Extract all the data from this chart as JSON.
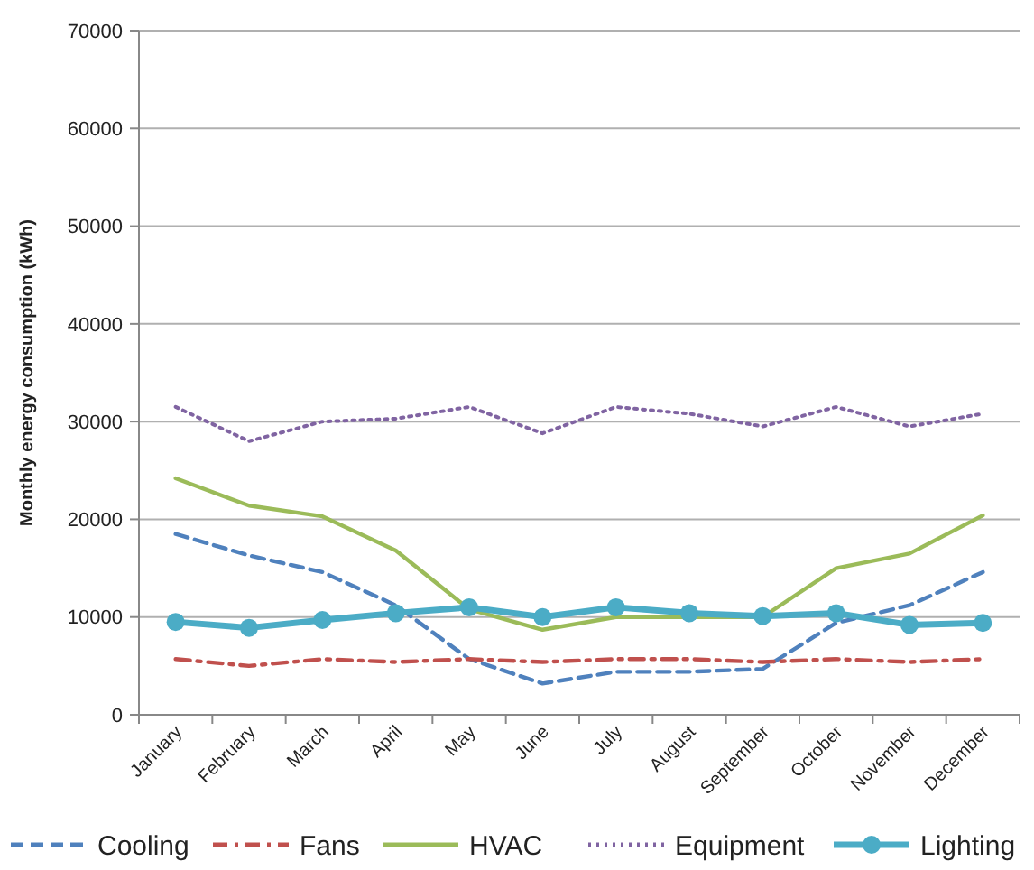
{
  "chart_data": {
    "type": "line",
    "ylabel": "Monthly energy consumption (kWh)",
    "categories": [
      "January",
      "February",
      "March",
      "April",
      "May",
      "June",
      "July",
      "August",
      "September",
      "October",
      "November",
      "December"
    ],
    "ylim": [
      0,
      70000
    ],
    "yticks": [
      0,
      10000,
      20000,
      30000,
      40000,
      50000,
      60000,
      70000
    ],
    "grid": "y",
    "legend": "bottom",
    "series": [
      {
        "name": "Cooling",
        "color": "#4f81bd",
        "line_style": "dashed",
        "marker": "none",
        "values": [
          18500,
          16300,
          14600,
          11200,
          5700,
          3200,
          4400,
          4400,
          4700,
          9400,
          11200,
          14600
        ]
      },
      {
        "name": "Fans",
        "color": "#c0504d",
        "line_style": "dashdot",
        "marker": "none",
        "values": [
          5700,
          5000,
          5700,
          5400,
          5700,
          5400,
          5700,
          5700,
          5400,
          5700,
          5400,
          5700
        ]
      },
      {
        "name": "HVAC",
        "color": "#9bbb59",
        "line_style": "solid",
        "marker": "none",
        "values": [
          24200,
          21400,
          20300,
          16800,
          10800,
          8700,
          10000,
          10000,
          10000,
          15000,
          16500,
          20400
        ]
      },
      {
        "name": "Equipment",
        "color": "#8064a2",
        "line_style": "dotted",
        "marker": "none",
        "values": [
          31500,
          28000,
          30000,
          30300,
          31500,
          28800,
          31500,
          30800,
          29500,
          31500,
          29500,
          30800
        ]
      },
      {
        "name": "Lighting",
        "color": "#4bacc6",
        "line_style": "solid",
        "marker": "circle",
        "values": [
          9500,
          8900,
          9700,
          10400,
          11000,
          10000,
          11000,
          10400,
          10100,
          10400,
          9200,
          9400
        ]
      }
    ]
  }
}
